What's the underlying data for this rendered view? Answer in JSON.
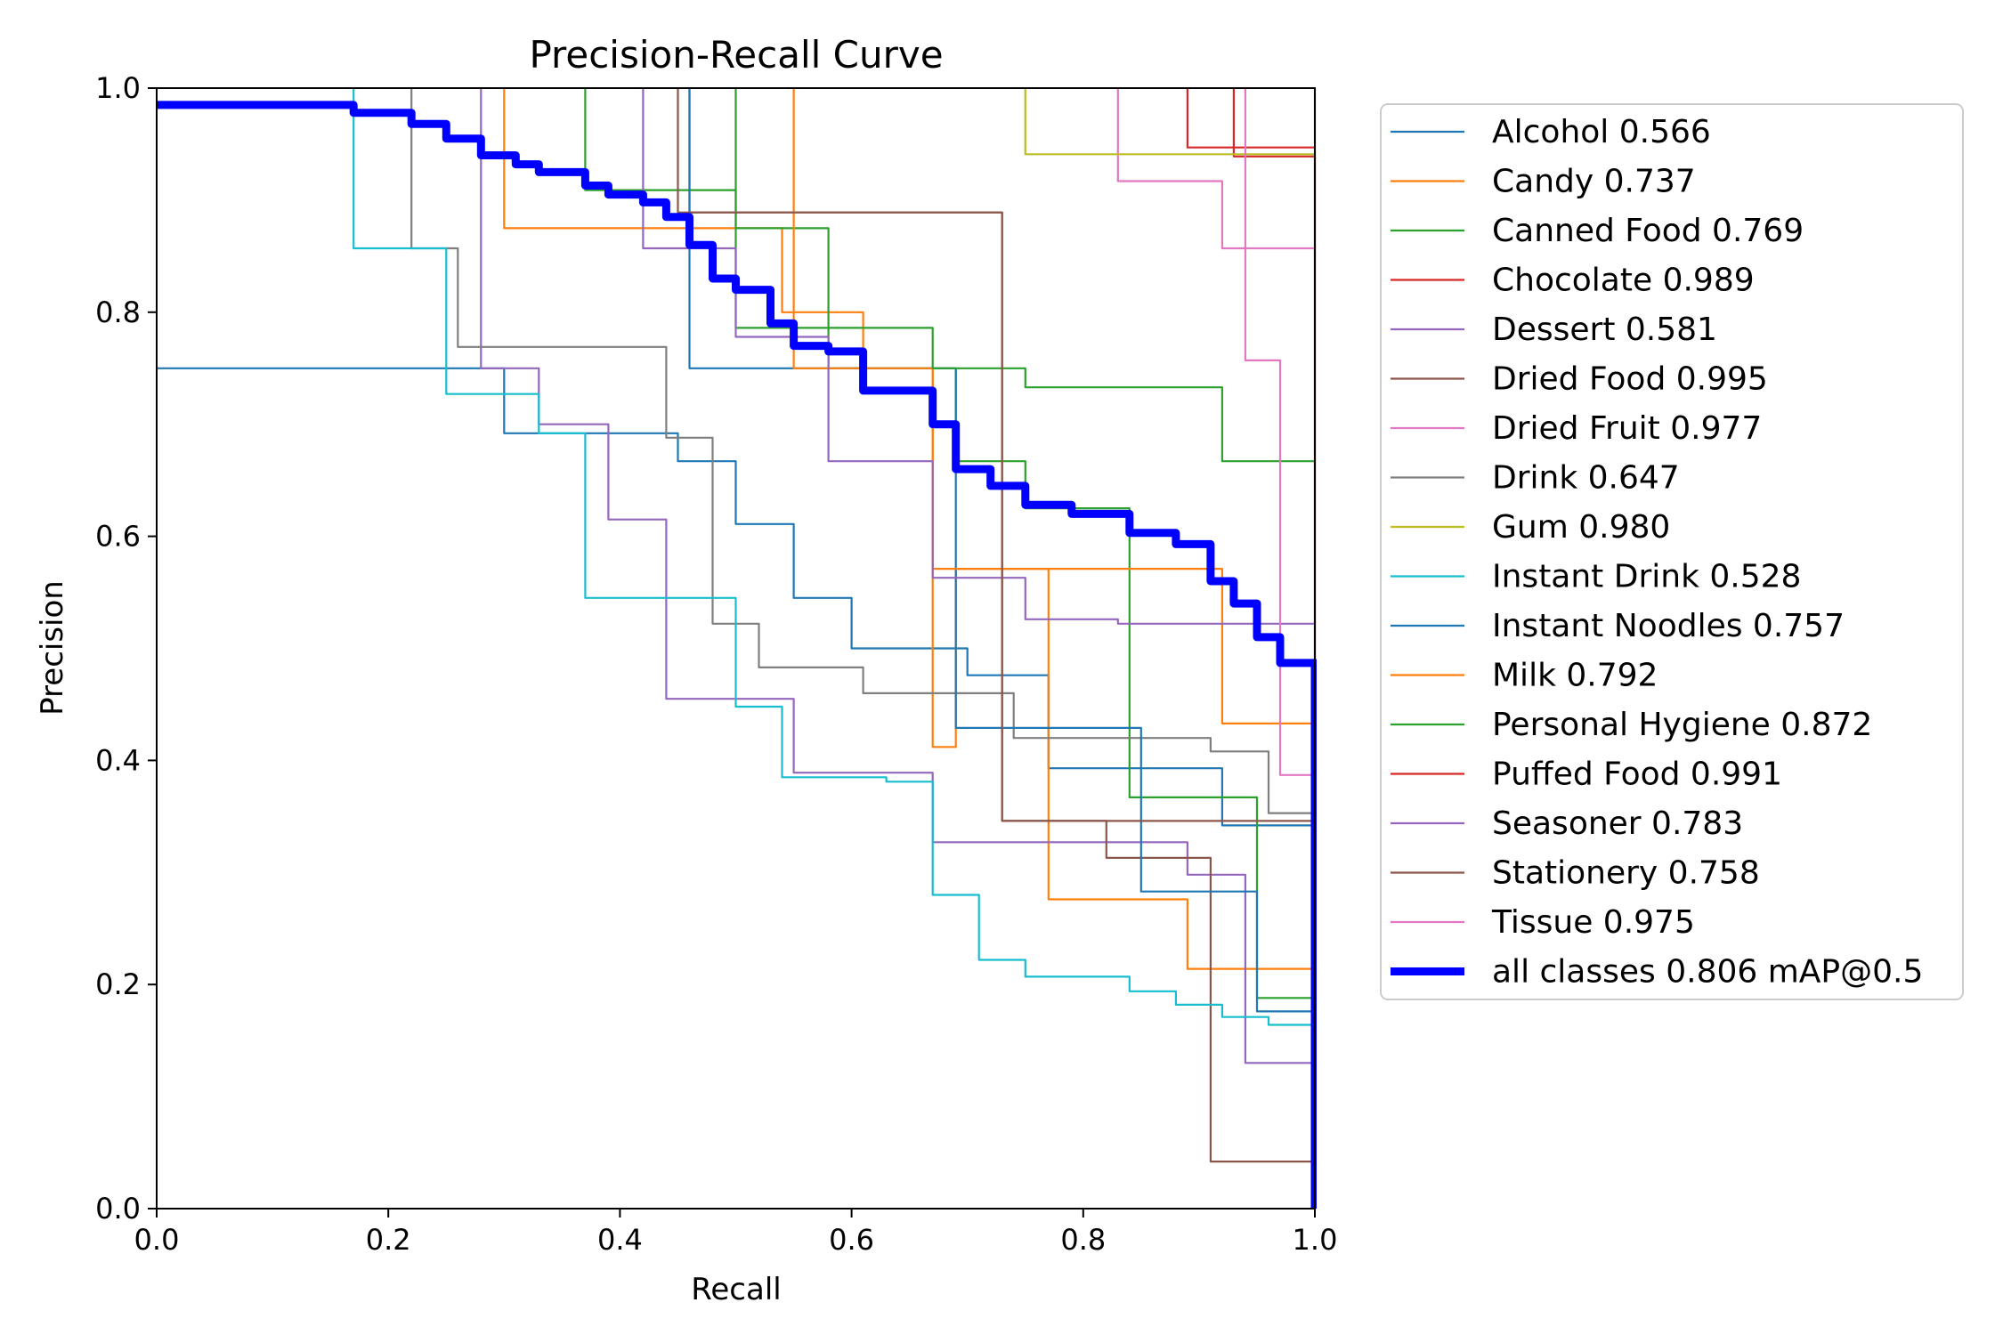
{
  "chart_data": {
    "type": "line",
    "title": "Precision-Recall Curve",
    "xlabel": "Recall",
    "ylabel": "Precision",
    "xlim": [
      0.0,
      1.0
    ],
    "ylim": [
      0.0,
      1.0
    ],
    "x_ticks": [
      "0.0",
      "0.2",
      "0.4",
      "0.6",
      "0.8",
      "1.0"
    ],
    "y_ticks": [
      "0.0",
      "0.2",
      "0.4",
      "0.6",
      "0.8",
      "1.0"
    ],
    "grid": false,
    "legend_position": "outside-right",
    "series": [
      {
        "name": "Alcohol",
        "label": "Alcohol 0.566",
        "color": "#1f77b4",
        "x": [
          0.0,
          0.3,
          0.3,
          0.45,
          0.45,
          0.5,
          0.5,
          0.55,
          0.55,
          0.6,
          0.6,
          0.7,
          0.7,
          0.77,
          0.77,
          0.92,
          0.92,
          1.0
        ],
        "y": [
          0.75,
          0.75,
          0.692,
          0.692,
          0.667,
          0.667,
          0.611,
          0.611,
          0.545,
          0.545,
          0.5,
          0.5,
          0.476,
          0.476,
          0.393,
          0.393,
          0.342,
          0.342
        ]
      },
      {
        "name": "Candy",
        "label": "Candy 0.737",
        "color": "#ff7f0e",
        "x": [
          0.3,
          0.3,
          0.31,
          0.31,
          0.54,
          0.54,
          0.61,
          0.61,
          0.67,
          0.67,
          0.69,
          0.69,
          0.77,
          0.77,
          0.89,
          0.89,
          1.0
        ],
        "y": [
          1.0,
          0.875,
          0.875,
          0.875,
          0.875,
          0.8,
          0.8,
          0.75,
          0.75,
          0.412,
          0.412,
          0.571,
          0.571,
          0.276,
          0.276,
          0.214,
          0.214
        ]
      },
      {
        "name": "Canned Food",
        "label": "Canned Food 0.769",
        "color": "#2ca02c",
        "x": [
          0.37,
          0.37,
          0.5,
          0.5,
          0.58,
          0.58,
          0.69,
          0.69,
          0.75,
          0.75,
          0.84,
          0.84,
          0.95,
          0.95,
          1.0
        ],
        "y": [
          1.0,
          0.909,
          0.909,
          0.875,
          0.875,
          0.75,
          0.75,
          0.667,
          0.667,
          0.625,
          0.625,
          0.367,
          0.367,
          0.188,
          0.188
        ]
      },
      {
        "name": "Chocolate",
        "label": "Chocolate 0.989",
        "color": "#d62728",
        "x": [
          0.89,
          0.89,
          0.93,
          0.93,
          1.0,
          1.0
        ],
        "y": [
          1.0,
          0.947,
          0.947,
          0.939,
          0.939,
          0.0
        ]
      },
      {
        "name": "Dessert",
        "label": "Dessert 0.581",
        "color": "#9467bd",
        "x": [
          0.28,
          0.28,
          0.33,
          0.33,
          0.39,
          0.39,
          0.44,
          0.44,
          0.55,
          0.55,
          0.67,
          0.67,
          0.75,
          0.75,
          0.89,
          0.89,
          0.94,
          0.94,
          1.0
        ],
        "y": [
          1.0,
          0.75,
          0.75,
          0.7,
          0.7,
          0.615,
          0.615,
          0.455,
          0.455,
          0.389,
          0.389,
          0.327,
          0.327,
          0.327,
          0.327,
          0.298,
          0.298,
          0.13,
          0.13
        ]
      },
      {
        "name": "Dried Food",
        "label": "Dried Food 0.995",
        "color": "#8c564b",
        "x": [
          0.46,
          0.46,
          0.73,
          0.73,
          0.82,
          0.82,
          0.91,
          0.91,
          1.0,
          1.0
        ],
        "y": [
          1.0,
          0.889,
          0.889,
          0.346,
          0.346,
          0.313,
          0.313,
          0.042,
          0.042,
          1.0
        ]
      },
      {
        "name": "Dried Fruit",
        "label": "Dried Fruit 0.977",
        "color": "#e377c2",
        "x": [
          0.83,
          0.83,
          0.92,
          0.92,
          0.94,
          0.94,
          0.96,
          0.96,
          0.97,
          0.97,
          1.0
        ],
        "y": [
          1.0,
          0.917,
          0.917,
          0.857,
          0.857,
          0.857,
          0.857,
          0.857,
          0.857,
          0.857,
          0.857
        ]
      },
      {
        "name": "Drink",
        "label": "Drink 0.647",
        "color": "#7f7f7f",
        "x": [
          0.22,
          0.22,
          0.26,
          0.26,
          0.44,
          0.44,
          0.48,
          0.48,
          0.52,
          0.52,
          0.61,
          0.61,
          0.74,
          0.74,
          0.91,
          0.91,
          0.96,
          0.96,
          1.0
        ],
        "y": [
          1.0,
          0.857,
          0.857,
          0.769,
          0.769,
          0.688,
          0.688,
          0.522,
          0.522,
          0.483,
          0.483,
          0.46,
          0.46,
          0.42,
          0.42,
          0.408,
          0.408,
          0.353,
          0.353
        ]
      },
      {
        "name": "Gum",
        "label": "Gum 0.980",
        "color": "#bcbd22",
        "x": [
          0.75,
          0.75,
          1.0
        ],
        "y": [
          1.0,
          0.941,
          0.941
        ]
      },
      {
        "name": "Instant Drink",
        "label": "Instant Drink 0.528",
        "color": "#17becf",
        "x": [
          0.17,
          0.17,
          0.25,
          0.25,
          0.33,
          0.33,
          0.37,
          0.37,
          0.5,
          0.5,
          0.54,
          0.54,
          0.63,
          0.63,
          0.67,
          0.67,
          0.71,
          0.71,
          0.75,
          0.75,
          0.84,
          0.84,
          0.88,
          0.88,
          0.92,
          0.92,
          0.96,
          0.96,
          1.0
        ],
        "y": [
          1.0,
          0.857,
          0.857,
          0.727,
          0.727,
          0.692,
          0.692,
          0.545,
          0.545,
          0.448,
          0.448,
          0.385,
          0.385,
          0.381,
          0.381,
          0.28,
          0.28,
          0.222,
          0.222,
          0.207,
          0.207,
          0.194,
          0.194,
          0.182,
          0.182,
          0.171,
          0.171,
          0.164,
          0.164
        ]
      },
      {
        "name": "Instant Noodles",
        "label": "Instant Noodles 0.757",
        "color": "#1f77b4",
        "x": [
          0.46,
          0.46,
          0.58,
          0.58,
          0.69,
          0.69,
          0.85,
          0.85,
          0.95,
          0.95,
          1.0
        ],
        "y": [
          1.0,
          0.75,
          0.75,
          0.75,
          0.75,
          0.429,
          0.429,
          0.283,
          0.283,
          0.176,
          0.176
        ]
      },
      {
        "name": "Milk",
        "label": "Milk 0.792",
        "color": "#ff7f0e",
        "x": [
          0.55,
          0.55,
          0.67,
          0.67,
          0.92,
          0.92,
          1.0
        ],
        "y": [
          1.0,
          0.75,
          0.75,
          0.571,
          0.571,
          0.433,
          0.433
        ]
      },
      {
        "name": "Personal Hygiene",
        "label": "Personal Hygiene 0.872",
        "color": "#2ca02c",
        "x": [
          0.5,
          0.5,
          0.67,
          0.67,
          0.75,
          0.75,
          0.92,
          0.92,
          1.0
        ],
        "y": [
          1.0,
          0.786,
          0.786,
          0.75,
          0.75,
          0.733,
          0.733,
          0.667,
          0.667
        ]
      },
      {
        "name": "Puffed Food",
        "label": "Puffed Food 0.991",
        "color": "#d62728",
        "x": [
          0.93,
          0.93,
          1.0
        ],
        "y": [
          1.0,
          0.947,
          0.947
        ]
      },
      {
        "name": "Seasoner",
        "label": "Seasoner 0.783",
        "color": "#9467bd",
        "x": [
          0.42,
          0.42,
          0.5,
          0.5,
          0.58,
          0.58,
          0.67,
          0.67,
          0.75,
          0.75,
          0.83,
          0.83,
          1.0
        ],
        "y": [
          1.0,
          0.857,
          0.857,
          0.778,
          0.778,
          0.667,
          0.667,
          0.563,
          0.563,
          0.526,
          0.526,
          0.522,
          0.522
        ]
      },
      {
        "name": "Stationery",
        "label": "Stationery 0.758",
        "color": "#8c564b",
        "x": [
          0.45,
          0.45,
          0.73,
          0.73,
          1.0
        ],
        "y": [
          1.0,
          0.889,
          0.889,
          0.346,
          0.346
        ]
      },
      {
        "name": "Tissue",
        "label": "Tissue 0.975",
        "color": "#e377c2",
        "x": [
          0.94,
          0.94,
          0.97,
          0.97,
          0.98,
          0.98,
          1.0
        ],
        "y": [
          1.0,
          0.757,
          0.757,
          0.387,
          0.387,
          0.387,
          0.387
        ]
      },
      {
        "name": "all classes",
        "label": "all classes 0.806 mAP@0.5",
        "color": "#0000ff",
        "bold": true,
        "x": [
          0.0,
          0.17,
          0.17,
          0.22,
          0.22,
          0.25,
          0.25,
          0.28,
          0.28,
          0.31,
          0.31,
          0.33,
          0.33,
          0.37,
          0.37,
          0.39,
          0.39,
          0.42,
          0.42,
          0.44,
          0.44,
          0.46,
          0.46,
          0.48,
          0.48,
          0.5,
          0.5,
          0.53,
          0.53,
          0.55,
          0.55,
          0.58,
          0.58,
          0.61,
          0.61,
          0.67,
          0.67,
          0.69,
          0.69,
          0.72,
          0.72,
          0.75,
          0.75,
          0.79,
          0.79,
          0.84,
          0.84,
          0.88,
          0.88,
          0.91,
          0.91,
          0.93,
          0.93,
          0.95,
          0.95,
          0.97,
          0.97,
          1.0,
          1.0
        ],
        "y": [
          0.985,
          0.985,
          0.978,
          0.978,
          0.968,
          0.968,
          0.955,
          0.955,
          0.94,
          0.94,
          0.932,
          0.932,
          0.925,
          0.925,
          0.913,
          0.913,
          0.905,
          0.905,
          0.898,
          0.898,
          0.885,
          0.885,
          0.86,
          0.86,
          0.83,
          0.83,
          0.82,
          0.82,
          0.79,
          0.79,
          0.77,
          0.77,
          0.765,
          0.765,
          0.73,
          0.73,
          0.7,
          0.7,
          0.66,
          0.66,
          0.645,
          0.645,
          0.628,
          0.628,
          0.62,
          0.62,
          0.603,
          0.603,
          0.593,
          0.593,
          0.56,
          0.56,
          0.54,
          0.54,
          0.51,
          0.51,
          0.487,
          0.487,
          0.0
        ]
      }
    ]
  }
}
